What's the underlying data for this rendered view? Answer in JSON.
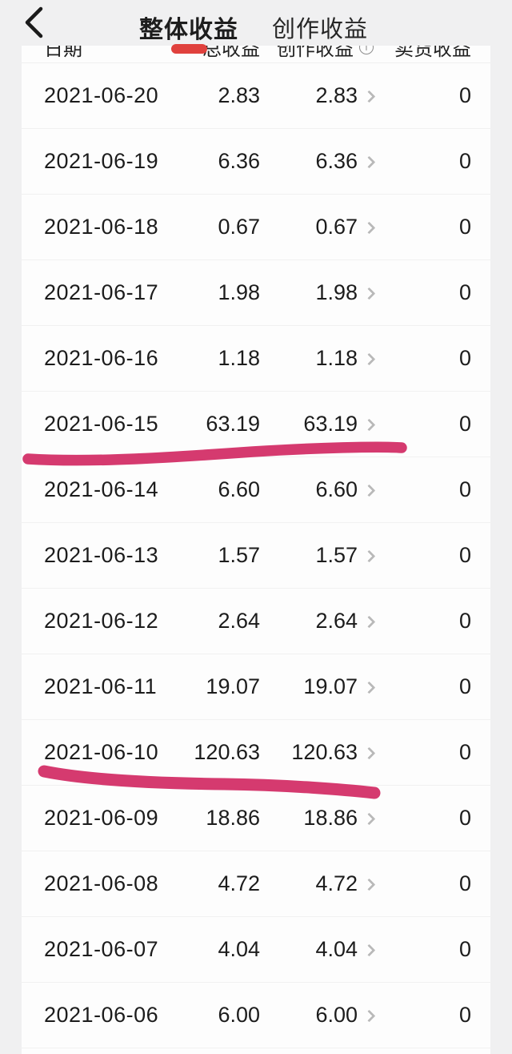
{
  "nav": {
    "tabs": [
      {
        "label": "整体收益",
        "active": true
      },
      {
        "label": "创作收益",
        "active": false
      }
    ]
  },
  "table": {
    "columns": {
      "date": "日期",
      "total": "总收益",
      "creation": "创作收益",
      "sales": "卖货收益"
    },
    "info_icon_glyph": "i",
    "rows": [
      {
        "date": "2021-06-20",
        "total": "2.83",
        "creation": "2.83",
        "sales": "0"
      },
      {
        "date": "2021-06-19",
        "total": "6.36",
        "creation": "6.36",
        "sales": "0"
      },
      {
        "date": "2021-06-18",
        "total": "0.67",
        "creation": "0.67",
        "sales": "0"
      },
      {
        "date": "2021-06-17",
        "total": "1.98",
        "creation": "1.98",
        "sales": "0"
      },
      {
        "date": "2021-06-16",
        "total": "1.18",
        "creation": "1.18",
        "sales": "0"
      },
      {
        "date": "2021-06-15",
        "total": "63.19",
        "creation": "63.19",
        "sales": "0",
        "highlighted": true
      },
      {
        "date": "2021-06-14",
        "total": "6.60",
        "creation": "6.60",
        "sales": "0"
      },
      {
        "date": "2021-06-13",
        "total": "1.57",
        "creation": "1.57",
        "sales": "0"
      },
      {
        "date": "2021-06-12",
        "total": "2.64",
        "creation": "2.64",
        "sales": "0"
      },
      {
        "date": "2021-06-11",
        "total": "19.07",
        "creation": "19.07",
        "sales": "0"
      },
      {
        "date": "2021-06-10",
        "total": "120.63",
        "creation": "120.63",
        "sales": "0",
        "highlighted": true
      },
      {
        "date": "2021-06-09",
        "total": "18.86",
        "creation": "18.86",
        "sales": "0"
      },
      {
        "date": "2021-06-08",
        "total": "4.72",
        "creation": "4.72",
        "sales": "0"
      },
      {
        "date": "2021-06-07",
        "total": "4.04",
        "creation": "4.04",
        "sales": "0"
      },
      {
        "date": "2021-06-06",
        "total": "6.00",
        "creation": "6.00",
        "sales": "0"
      }
    ]
  },
  "annotations": {
    "marker_underlined_dates": [
      "2021-06-15",
      "2021-06-10"
    ]
  },
  "colors": {
    "accent_red": "#e0413d",
    "marker_pink": "#d53a6f",
    "page_bg": "#f0f0f1",
    "card_bg": "#fdfdfd",
    "text_primary": "#1c1c1c",
    "chevron_gray": "#b9b9b9"
  }
}
